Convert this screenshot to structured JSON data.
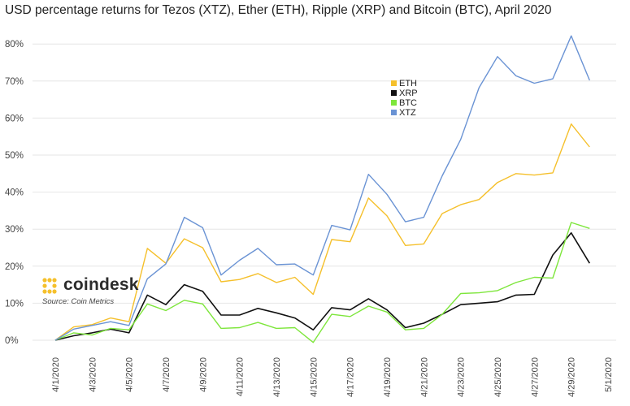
{
  "chart_data": {
    "type": "line",
    "title": "USD percentage returns for Tezos (XTZ), Ether (ETH), Ripple (XRP) and Bitcoin (BTC),  April 2020",
    "xlabel": "",
    "ylabel": "",
    "ylim": [
      -3,
      85
    ],
    "y_ticks": [
      0,
      10,
      20,
      30,
      40,
      50,
      60,
      70,
      80
    ],
    "y_tick_labels": [
      "0%",
      "10%",
      "20%",
      "30%",
      "40%",
      "50%",
      "60%",
      "70%",
      "80%"
    ],
    "x_tick_labels": [
      "4/1/2020",
      "4/3/2020",
      "4/5/2020",
      "4/7/2020",
      "4/9/2020",
      "4/11/2020",
      "4/13/2020",
      "4/15/2020",
      "4/17/2020",
      "4/19/2020",
      "4/21/2020",
      "4/23/2020",
      "4/25/2020",
      "4/27/2020",
      "4/29/2020",
      "5/1/2020"
    ],
    "x": [
      "4/1/2020",
      "4/2/2020",
      "4/3/2020",
      "4/4/2020",
      "4/5/2020",
      "4/6/2020",
      "4/7/2020",
      "4/8/2020",
      "4/9/2020",
      "4/10/2020",
      "4/11/2020",
      "4/12/2020",
      "4/13/2020",
      "4/14/2020",
      "4/15/2020",
      "4/16/2020",
      "4/17/2020",
      "4/18/2020",
      "4/19/2020",
      "4/20/2020",
      "4/21/2020",
      "4/22/2020",
      "4/23/2020",
      "4/24/2020",
      "4/25/2020",
      "4/26/2020",
      "4/27/2020",
      "4/28/2020",
      "4/29/2020",
      "4/30/2020"
    ],
    "grid": true,
    "legend_position": "center-top",
    "series": [
      {
        "name": "ETH",
        "color": "#f5c02c",
        "values": [
          0,
          3.6,
          4.2,
          6.0,
          5.0,
          24.8,
          20.8,
          27.4,
          25.0,
          15.8,
          16.4,
          18.0,
          15.6,
          17.0,
          12.4,
          27.2,
          26.6,
          38.4,
          33.6,
          25.6,
          26.0,
          34.2,
          36.6,
          38.0,
          42.6,
          45.0,
          44.6,
          45.2,
          58.4,
          52.2
        ]
      },
      {
        "name": "XRP",
        "color": "#111111",
        "values": [
          0,
          1.2,
          2.0,
          3.0,
          2.0,
          12.2,
          9.6,
          15.0,
          13.2,
          6.8,
          6.8,
          8.6,
          7.4,
          6.0,
          2.8,
          8.8,
          8.2,
          11.2,
          8.2,
          3.4,
          4.6,
          7.0,
          9.6,
          10.0,
          10.4,
          12.2,
          12.4,
          23.0,
          29.0,
          20.8
        ]
      },
      {
        "name": "BTC",
        "color": "#7ee63c",
        "values": [
          0,
          2.0,
          1.4,
          3.2,
          2.8,
          9.8,
          8.0,
          10.8,
          9.8,
          3.2,
          3.4,
          4.8,
          3.2,
          3.4,
          -0.6,
          7.0,
          6.4,
          9.2,
          7.6,
          2.8,
          3.2,
          7.0,
          12.6,
          12.8,
          13.4,
          15.6,
          17.0,
          16.8,
          31.8,
          30.2
        ]
      },
      {
        "name": "XTZ",
        "color": "#6a93d4",
        "values": [
          0,
          3.0,
          4.0,
          5.0,
          4.0,
          16.6,
          20.6,
          33.2,
          30.4,
          17.6,
          21.6,
          24.8,
          20.4,
          20.6,
          17.6,
          31.0,
          29.8,
          44.8,
          39.4,
          32.0,
          33.2,
          44.4,
          54.2,
          68.2,
          76.6,
          71.4,
          69.4,
          70.6,
          82.2,
          70.2
        ]
      }
    ],
    "legend_order": [
      "ETH",
      "XRP",
      "BTC",
      "XTZ"
    ]
  },
  "branding": {
    "logo_text": "coindesk",
    "source_text": "Source: Coin Metrics",
    "logo_color": "#f5c02c"
  }
}
